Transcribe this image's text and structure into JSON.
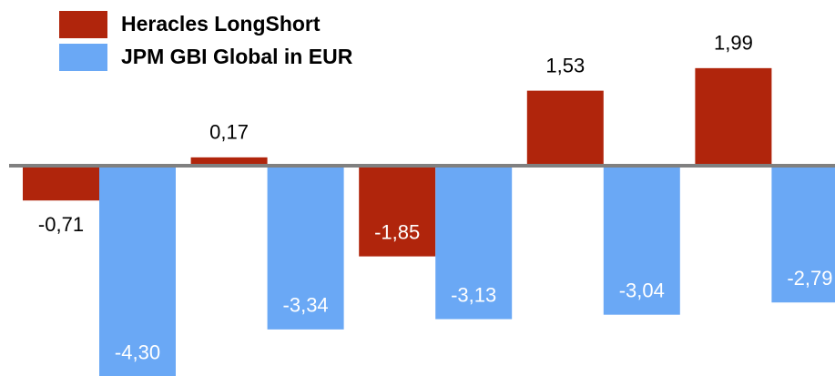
{
  "chart_data": {
    "type": "bar",
    "categories": [
      null,
      null,
      null,
      null,
      null
    ],
    "series": [
      {
        "name": "Heracles LongShort",
        "color": "#b0250c",
        "values": [
          -0.71,
          0.17,
          -1.85,
          1.53,
          1.99
        ],
        "value_labels": [
          "-0,71",
          "0,17",
          "-1,85",
          "1,53",
          "1,99"
        ]
      },
      {
        "name": "JPM GBI Global in EUR",
        "color": "#6aa8f5",
        "values": [
          -4.3,
          -3.34,
          -3.13,
          -3.04,
          -2.79
        ],
        "value_labels": [
          "-4,30",
          "-3,34",
          "-3,13",
          "-3,04",
          "-2,79"
        ]
      }
    ],
    "ylim": [
      -4.29,
      3.38
    ],
    "legend": "upper left"
  }
}
